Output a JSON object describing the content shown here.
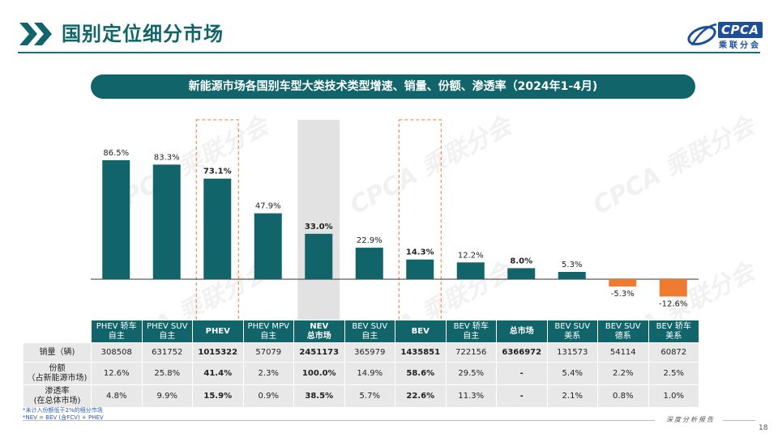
{
  "header": {
    "title": "国别定位细分市场",
    "logo_text": "CPCA",
    "logo_sub": "乘联分会"
  },
  "subtitle": "新能源市场各国别车型大类技术类型增速、销量、份额、渗透率（2024年1-4月)",
  "watermark_text": "CPCA 乘联分会",
  "colors": {
    "primary": "#11656a",
    "negative": "#ee7b2f",
    "highlight_box": "#ee7b2f",
    "highlight_fill": "#e2e2e2"
  },
  "chart_data": {
    "type": "bar",
    "categories": [
      "PHEV 轿车 自主",
      "PHEV SUV 自主",
      "PHEV",
      "PHEV MPV 自主",
      "NEV 总市场",
      "BEV SUV 自主",
      "BEV",
      "BEV 轿车 自主",
      "总市场",
      "BEV SUV 美系",
      "BEV SUV 德系",
      "BEV 轿车 美系"
    ],
    "values": [
      86.5,
      83.3,
      73.1,
      47.9,
      33.0,
      22.9,
      14.3,
      12.2,
      8.0,
      5.3,
      -5.3,
      -12.6
    ],
    "data_labels": [
      "86.5%",
      "83.3%",
      "73.1%",
      "47.9%",
      "33.0%",
      "22.9%",
      "14.3%",
      "12.2%",
      "8.0%",
      "5.3%",
      "-5.3%",
      "-12.6%"
    ],
    "bold_labels": [
      false,
      false,
      true,
      false,
      true,
      false,
      true,
      false,
      true,
      false,
      false,
      false
    ],
    "highlight_boxes": [
      2,
      6
    ],
    "highlight_fill": [
      4
    ],
    "ylim": [
      -15,
      90
    ],
    "unit": "%"
  },
  "table": {
    "columns": [
      {
        "line1": "PHEV 轿车",
        "line2": "自主",
        "bold": false
      },
      {
        "line1": "PHEV SUV",
        "line2": "自主",
        "bold": false
      },
      {
        "line1": "PHEV",
        "line2": "",
        "bold": true
      },
      {
        "line1": "PHEV MPV",
        "line2": "自主",
        "bold": false
      },
      {
        "line1": "NEV",
        "line2": "总市场",
        "bold": true
      },
      {
        "line1": "BEV SUV",
        "line2": "自主",
        "bold": false
      },
      {
        "line1": "BEV",
        "line2": "",
        "bold": true
      },
      {
        "line1": "BEV 轿车",
        "line2": "自主",
        "bold": false
      },
      {
        "line1": "总市场",
        "line2": "",
        "bold": true
      },
      {
        "line1": "BEV SUV",
        "line2": "美系",
        "bold": false
      },
      {
        "line1": "BEV SUV",
        "line2": "德系",
        "bold": false
      },
      {
        "line1": "BEV 轿车",
        "line2": "美系",
        "bold": false
      }
    ],
    "rows": [
      {
        "key": "sales",
        "label1": "销量（辆)",
        "label2": "",
        "values": [
          "308508",
          "631752",
          "1015322",
          "57079",
          "2451173",
          "365979",
          "1435851",
          "722156",
          "6366972",
          "131573",
          "54114",
          "60872"
        ]
      },
      {
        "key": "share",
        "label1": "份额",
        "label2": "（占新能源市场)",
        "values": [
          "12.6%",
          "25.8%",
          "41.4%",
          "2.3%",
          "100.0%",
          "14.9%",
          "58.6%",
          "29.5%",
          "-",
          "5.4%",
          "2.2%",
          "2.5%"
        ]
      },
      {
        "key": "pen",
        "label1": "渗透率",
        "label2": "(在总体市场)",
        "values": [
          "4.8%",
          "9.9%",
          "15.9%",
          "0.9%",
          "38.5%",
          "5.7%",
          "22.6%",
          "11.3%",
          "-",
          "2.1%",
          "0.8%",
          "1.0%"
        ]
      }
    ]
  },
  "notes": [
    "*未计入份额低于2%的细分市场",
    "*NEV = BEV (含FCV) + PHEV"
  ],
  "footer": {
    "tag": "深度分析报告",
    "page_number": "18"
  }
}
